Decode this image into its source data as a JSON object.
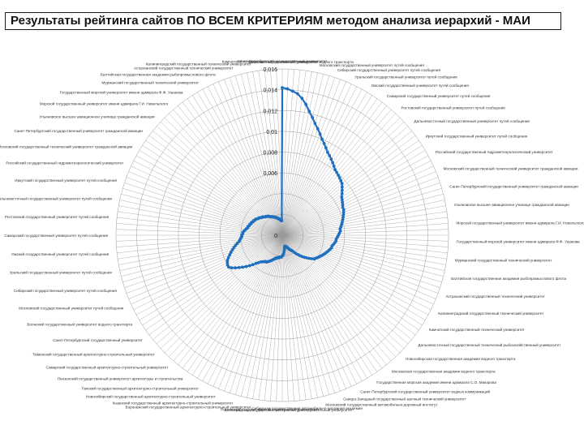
{
  "page": {
    "title": "Результаты рейтинга сайтов ПО ВСЕМ КРИТЕРИЯМ методом анализа иерархий - МАИ"
  },
  "chart_data": {
    "type": "radar",
    "title": "",
    "series_color": "#1f6fbf",
    "grid_color": "#9a9a9a",
    "rmax": 0.016,
    "radial_ticks": [
      0,
      0.002,
      0.004,
      0.006,
      0.008,
      0.01,
      0.012,
      0.014,
      0.016
    ],
    "radial_tick_labels": [
      "0",
      "",
      "",
      "0,006",
      "0,008",
      "0,01",
      "0,012",
      "0,014",
      "0,016"
    ],
    "visible_category_labels": [
      "Санкт-Петербургский государственный университет",
      "Волжский государственный университет водного транспорта",
      "Московский государственный университет путей сообщения",
      "Сибирский государственный университет путей сообщения",
      "Уральский государственный университет путей сообщения",
      "Омский государственный университет путей сообщения",
      "Самарский государственный университет путей сообщения",
      "Ростовский государственный университет путей сообщения",
      "Дальневосточный государственный университет путей сообщения",
      "Иркутский государственный университет путей сообщения",
      "Российский государственный гидрометеорологический университет",
      "Московский государственный технический университет гражданской авиации",
      "Санкт-Петербургский государственный университет гражданской авиации",
      "Ульяновское высшее авиационное училище гражданской авиации",
      "Морской государственный университет имени адмирала Г.И. Невельского",
      "Государственный морской университет имени адмирала Ф.Ф. Ушакова",
      "Мурманский государственный технический университет",
      "Балтийская государственная академия рыбопромыслового флота",
      "Астраханский государственный технический университет",
      "Калининградский государственный технический университет",
      "Камчатский государственный технический университет",
      "Дальневосточный государственный технический рыбохозяйственный университет",
      "Новосибирская государственная академия водного транспорта",
      "Московская государственная академия водного транспорта",
      "Государственная морская академия имени адмирала С.О. Макарова",
      "Санкт-Петербургский государственный университет водных коммуникаций",
      "Северо-Западный государственный заочный технический университет",
      "Московский государственный автомобильно-дорожный институт",
      "Сибирская государственная автомобильно-дорожная академия",
      "Волгоградский государственный архитектурно-строительный университет",
      "Ростовский государственный строительный университет",
      "Воронежский государственный архитектурно-строительный университет",
      "Казанский государственный архитектурно-строительный университет",
      "Новосибирский государственный архитектурно-строительный университет",
      "Томский государственный архитектурно-строительный университет",
      "Пензенский государственный университет архитектуры и строительства",
      "Самарский государственный архитектурно-строительный университет",
      "Тюменский государственный архитектурно-строительный университет"
    ],
    "values": [
      0.0142,
      0.0141,
      0.0139,
      0.0137,
      0.0133,
      0.0128,
      0.0122,
      0.0117,
      0.0112,
      0.0108,
      0.0104,
      0.01,
      0.0097,
      0.0094,
      0.0091,
      0.0089,
      0.0087,
      0.0085,
      0.0083,
      0.0081,
      0.008,
      0.0079,
      0.0078,
      0.0077,
      0.0076,
      0.0074,
      0.0072,
      0.007,
      0.0068,
      0.0067,
      0.0066,
      0.0065,
      0.0064,
      0.0064,
      0.0063,
      0.0062,
      0.0061,
      0.006,
      0.0059,
      0.0058,
      0.0057,
      0.0056,
      0.0056,
      0.0055,
      0.0054,
      0.0053,
      0.0052,
      0.0052,
      0.0051,
      0.005,
      0.0049,
      0.0049,
      0.0048,
      0.0047,
      0.0046,
      0.0045,
      0.0044,
      0.0043,
      0.0042,
      0.0041,
      0.004,
      0.0039,
      0.0038,
      0.0036,
      0.0034,
      0.0032,
      0.003,
      0.0028,
      0.0026,
      0.0024,
      0.0022,
      0.002,
      0.0018,
      0.0017,
      0.0016,
      0.0015,
      0.0014,
      0.0013,
      0.0012,
      0.0012,
      0.0011,
      0.0011,
      0.0011,
      0.0012,
      0.0014,
      0.0016,
      0.0018,
      0.0019,
      0.002,
      0.0021,
      0.0021,
      0.0021,
      0.0022,
      0.0022,
      0.0022,
      0.0023,
      0.0023,
      0.0024,
      0.0025,
      0.0026,
      0.0027,
      0.0028,
      0.0029,
      0.003,
      0.003,
      0.0031,
      0.0032,
      0.0033,
      0.0035,
      0.0037,
      0.004,
      0.0043,
      0.0046,
      0.0049,
      0.0052,
      0.0055,
      0.0058,
      0.006,
      0.006,
      0.0059,
      0.0058,
      0.0056,
      0.0054,
      0.0052,
      0.005,
      0.0048,
      0.0046,
      0.0044,
      0.0042,
      0.0041,
      0.004,
      0.0039,
      0.0039,
      0.0038,
      0.0038,
      0.0037,
      0.0036,
      0.0035,
      0.0034,
      0.0034,
      0.0033,
      0.0033,
      0.0032,
      0.0032,
      0.0031,
      0.0031,
      0.003,
      0.003,
      0.0029,
      0.0028,
      0.0028,
      0.0027,
      0.0026,
      0.0026,
      0.0025,
      0.0024,
      0.0024,
      0.0023,
      0.0023,
      0.0022,
      0.0021,
      0.0021,
      0.002,
      0.002,
      0.0019,
      0.0019,
      0.0018,
      0.0018,
      0.0017,
      0.0017,
      0.0016,
      0.0016,
      0.0015,
      0.0015,
      0.0014,
      0.0014
    ]
  }
}
